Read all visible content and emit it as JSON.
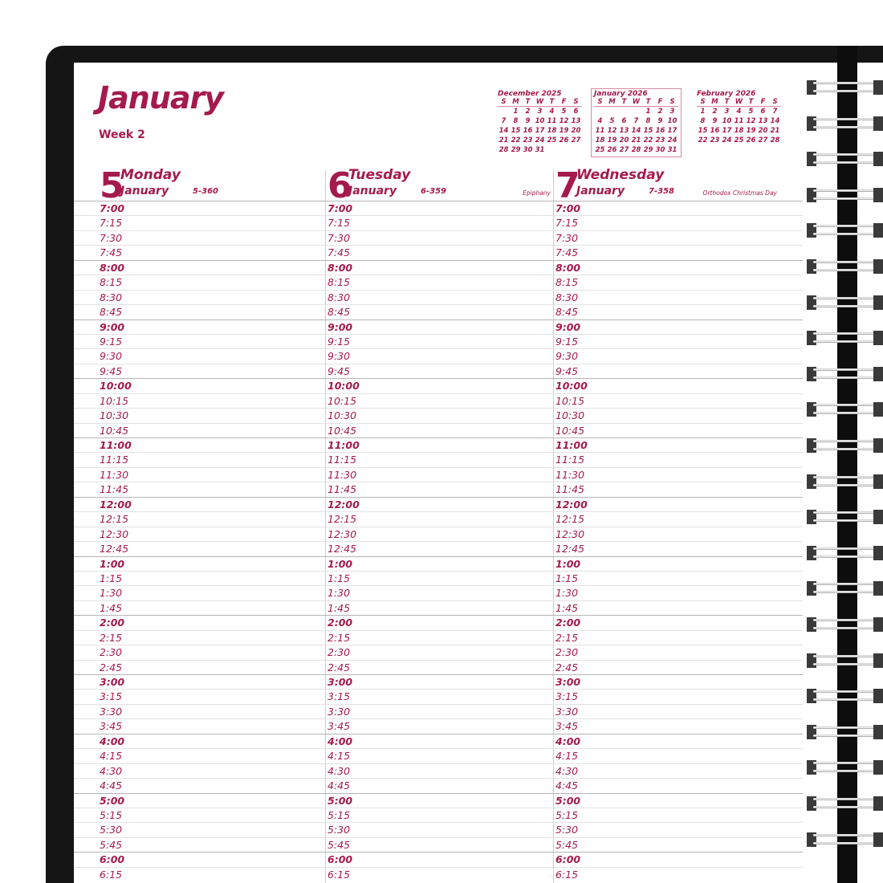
{
  "header": {
    "month_title": "January",
    "week_label": "Week 2"
  },
  "mini_calendars": [
    {
      "title": "December 2025",
      "weekdays": [
        "S",
        "M",
        "T",
        "W",
        "T",
        "F",
        "S"
      ],
      "weeks": [
        [
          "",
          "1",
          "2",
          "3",
          "4",
          "5",
          "6"
        ],
        [
          "7",
          "8",
          "9",
          "10",
          "11",
          "12",
          "13"
        ],
        [
          "14",
          "15",
          "16",
          "17",
          "18",
          "19",
          "20"
        ],
        [
          "21",
          "22",
          "23",
          "24",
          "25",
          "26",
          "27"
        ],
        [
          "28",
          "29",
          "30",
          "31",
          "",
          "",
          ""
        ]
      ],
      "highlighted": false
    },
    {
      "title": "January 2026",
      "weekdays": [
        "S",
        "M",
        "T",
        "W",
        "T",
        "F",
        "S"
      ],
      "weeks": [
        [
          "",
          "",
          "",
          "",
          "1",
          "2",
          "3"
        ],
        [
          "4",
          "5",
          "6",
          "7",
          "8",
          "9",
          "10"
        ],
        [
          "11",
          "12",
          "13",
          "14",
          "15",
          "16",
          "17"
        ],
        [
          "18",
          "19",
          "20",
          "21",
          "22",
          "23",
          "24"
        ],
        [
          "25",
          "26",
          "27",
          "28",
          "29",
          "30",
          "31"
        ]
      ],
      "highlighted": true
    },
    {
      "title": "February 2026",
      "weekdays": [
        "S",
        "M",
        "T",
        "W",
        "T",
        "F",
        "S"
      ],
      "weeks": [
        [
          "1",
          "2",
          "3",
          "4",
          "5",
          "6",
          "7"
        ],
        [
          "8",
          "9",
          "10",
          "11",
          "12",
          "13",
          "14"
        ],
        [
          "15",
          "16",
          "17",
          "18",
          "19",
          "20",
          "21"
        ],
        [
          "22",
          "23",
          "24",
          "25",
          "26",
          "27",
          "28"
        ]
      ],
      "highlighted": false
    }
  ],
  "days": [
    {
      "number": "5",
      "name": "Monday",
      "month": "January",
      "day_count": "5-360",
      "holiday": ""
    },
    {
      "number": "6",
      "name": "Tuesday",
      "month": "January",
      "day_count": "6-359",
      "holiday": "Epiphany"
    },
    {
      "number": "7",
      "name": "Wednesday",
      "month": "January",
      "day_count": "7-358",
      "holiday": "Orthodox Christmas Day"
    }
  ],
  "times": [
    "7:00",
    "7:15",
    "7:30",
    "7:45",
    "8:00",
    "8:15",
    "8:30",
    "8:45",
    "9:00",
    "9:15",
    "9:30",
    "9:45",
    "10:00",
    "10:15",
    "10:30",
    "10:45",
    "11:00",
    "11:15",
    "11:30",
    "11:45",
    "12:00",
    "12:15",
    "12:30",
    "12:45",
    "1:00",
    "1:15",
    "1:30",
    "1:45",
    "2:00",
    "2:15",
    "2:30",
    "2:45",
    "3:00",
    "3:15",
    "3:30",
    "3:45",
    "4:00",
    "4:15",
    "4:30",
    "4:45",
    "5:00",
    "5:15",
    "5:30",
    "5:45",
    "6:00",
    "6:15"
  ],
  "colors": {
    "accent": "#a51a4c",
    "cover": "#151515"
  }
}
